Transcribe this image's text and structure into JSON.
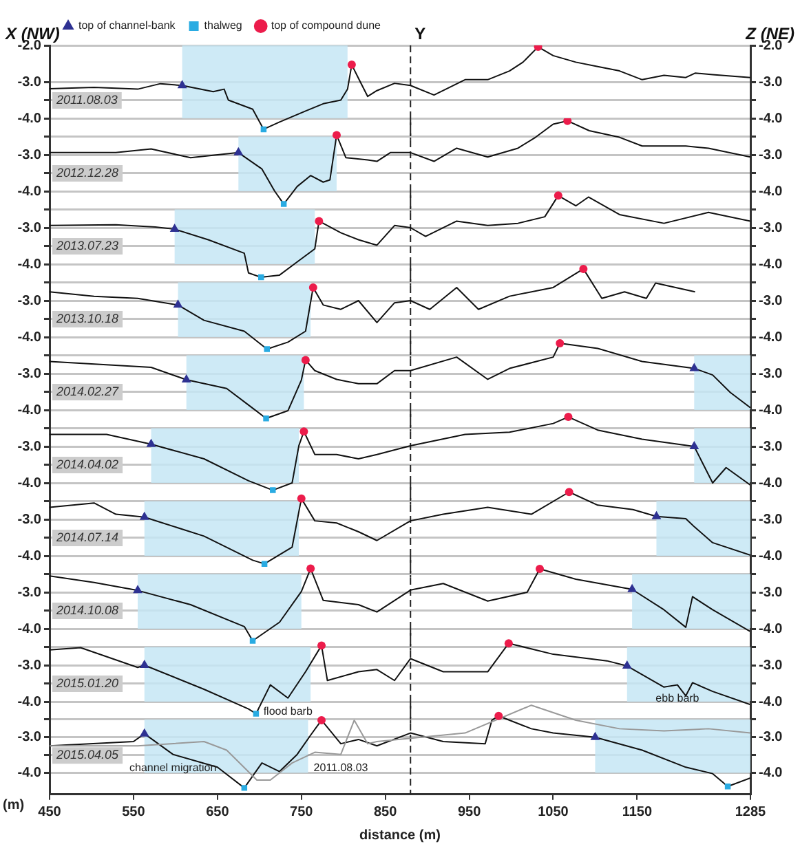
{
  "chart_data": [
    {
      "type": "line",
      "title": "2011.08.03",
      "annotations": [
        "X (NW)",
        "Z (NE)"
      ],
      "legend": "top",
      "tick_labels": "y",
      "grid": "y",
      "xlim": [
        450,
        1285
      ],
      "ylim": [
        -4.6,
        -2.0
      ],
      "yticks": [
        {
          "value": -2,
          "label": "-2.0"
        },
        {
          "value": -3,
          "label": "-3.0"
        },
        {
          "value": -3.5,
          "label": null
        },
        {
          "value": -4,
          "label": "-4.0"
        }
      ],
      "y2lim": [
        -4.6,
        -2.0
      ],
      "y2ticks": [
        {
          "value": -2,
          "label": "-2.0"
        },
        {
          "value": -3,
          "label": "-3.0"
        },
        {
          "value": -3.5,
          "label": null
        },
        {
          "value": -4,
          "label": "-4.0"
        }
      ],
      "ref_lines": [
        {
          "axis": "x",
          "value": 880,
          "label": "Y",
          "line_style": "dashed",
          "color": "#222222"
        }
      ],
      "bands": [
        {
          "axis": "x",
          "from": 608,
          "to": 805,
          "color": "#c6e6f4"
        }
      ],
      "series": [
        {
          "color": "#111111",
          "x": [
            450,
            503,
            555,
            582,
            608,
            645,
            658,
            663,
            692,
            705,
            724,
            755,
            776,
            797,
            805,
            810,
            818,
            829,
            840,
            861,
            880,
            908,
            945,
            972,
            998,
            1014,
            1032,
            1050,
            1077,
            1103,
            1129,
            1156,
            1182,
            1208,
            1219,
            1240,
            1285
          ],
          "values": [
            -3.19,
            -3.15,
            -3.2,
            -3.05,
            -3.1,
            -3.27,
            -3.2,
            -3.5,
            -3.75,
            -4.3,
            -4.1,
            -3.8,
            -3.6,
            -3.5,
            -3.2,
            -2.53,
            -2.9,
            -3.4,
            -3.24,
            -3.04,
            -3.1,
            -3.36,
            -2.94,
            -2.94,
            -2.7,
            -2.46,
            -2.04,
            -2.28,
            -2.46,
            -2.58,
            -2.7,
            -2.94,
            -2.82,
            -2.88,
            -2.76,
            -2.8,
            -2.88
          ]
        },
        {
          "type": "scatter",
          "name": "top of channel-bank",
          "marker": "triangle",
          "color": "#2e3192",
          "x": [
            608
          ],
          "values": [
            -3.1
          ]
        },
        {
          "type": "scatter",
          "name": "thalweg",
          "marker": "square",
          "color": "#29abe2",
          "x": [
            705
          ],
          "values": [
            -4.3
          ]
        },
        {
          "type": "scatter",
          "name": "top of compound dune",
          "marker": "circle",
          "color": "#ec1c4b",
          "x": [
            810,
            1032
          ],
          "values": [
            -2.53,
            -2.04
          ]
        }
      ]
    },
    {
      "type": "line",
      "title": "2012.12.28",
      "tick_labels": "y",
      "grid": "y",
      "xlim": [
        450,
        1285
      ],
      "ylim": [
        -4.6,
        -2.0
      ],
      "yticks": [
        {
          "value": -2.5,
          "label": null
        },
        {
          "value": -3,
          "label": "-3.0"
        },
        {
          "value": -3.5,
          "label": null
        },
        {
          "value": -4,
          "label": "-4.0"
        }
      ],
      "y2lim": [
        -4.6,
        -2.0
      ],
      "y2ticks": [
        {
          "value": -2.5,
          "label": null
        },
        {
          "value": -3,
          "label": "-3.0"
        },
        {
          "value": -3.5,
          "label": null
        },
        {
          "value": -4,
          "label": "-4.0"
        }
      ],
      "ref_lines": [
        {
          "axis": "x",
          "value": 880,
          "line_style": "dashed",
          "color": "#222222"
        }
      ],
      "bands": [
        {
          "axis": "x",
          "from": 675,
          "to": 792,
          "color": "#c6e6f4"
        }
      ],
      "series": [
        {
          "color": "#111111",
          "x": [
            450,
            529,
            571,
            618,
            675,
            703,
            718,
            729,
            745,
            761,
            776,
            784,
            792,
            803,
            829,
            840,
            856,
            880,
            908,
            935,
            972,
            1008,
            1029,
            1050,
            1067,
            1093,
            1129,
            1156,
            1208,
            1235,
            1285
          ],
          "values": [
            -2.94,
            -2.94,
            -2.84,
            -3.08,
            -2.94,
            -3.39,
            -3.99,
            -4.35,
            -3.87,
            -3.57,
            -3.75,
            -3.69,
            -2.46,
            -3.08,
            -3.14,
            -3.18,
            -2.94,
            -2.94,
            -3.18,
            -2.82,
            -3.06,
            -2.82,
            -2.52,
            -2.16,
            -2.07,
            -2.34,
            -2.52,
            -2.76,
            -2.76,
            -2.82,
            -3.06
          ]
        },
        {
          "type": "scatter",
          "marker": "triangle",
          "color": "#2e3192",
          "x": [
            675
          ],
          "values": [
            -2.94
          ]
        },
        {
          "type": "scatter",
          "marker": "square",
          "color": "#29abe2",
          "x": [
            729
          ],
          "values": [
            -4.35
          ]
        },
        {
          "type": "scatter",
          "marker": "circle",
          "color": "#ec1c4b",
          "x": [
            792,
            1067
          ],
          "values": [
            -2.46,
            -2.07
          ]
        }
      ]
    },
    {
      "type": "line",
      "title": "2013.07.23",
      "tick_labels": "y",
      "grid": "y",
      "xlim": [
        450,
        1285
      ],
      "ylim": [
        -4.6,
        -2.0
      ],
      "yticks": [
        {
          "value": -2.5,
          "label": null
        },
        {
          "value": -3,
          "label": "-3.0"
        },
        {
          "value": -3.5,
          "label": null
        },
        {
          "value": -4,
          "label": "-4.0"
        }
      ],
      "y2lim": [
        -4.6,
        -2.0
      ],
      "y2ticks": [
        {
          "value": -2.5,
          "label": null
        },
        {
          "value": -3,
          "label": "-3.0"
        },
        {
          "value": -3.5,
          "label": null
        },
        {
          "value": -4,
          "label": "-4.0"
        }
      ],
      "ref_lines": [
        {
          "axis": "x",
          "value": 880,
          "line_style": "dashed",
          "color": "#222222"
        }
      ],
      "bands": [
        {
          "axis": "x",
          "from": 599,
          "to": 766,
          "color": "#c6e6f4"
        }
      ],
      "series": [
        {
          "color": "#111111",
          "x": [
            450,
            529,
            576,
            599,
            639,
            682,
            687,
            702,
            724,
            745,
            766,
            771,
            797,
            818,
            840,
            861,
            880,
            898,
            935,
            972,
            1008,
            1040,
            1056,
            1077,
            1092,
            1129,
            1182,
            1235,
            1285
          ],
          "values": [
            -2.94,
            -2.92,
            -2.98,
            -3.04,
            -3.33,
            -3.7,
            -4.24,
            -4.36,
            -4.3,
            -3.94,
            -3.58,
            -2.82,
            -3.14,
            -3.33,
            -3.48,
            -2.94,
            -3.0,
            -3.24,
            -2.82,
            -2.94,
            -2.88,
            -2.7,
            -2.12,
            -2.4,
            -2.16,
            -2.64,
            -2.88,
            -2.58,
            -2.82
          ]
        },
        {
          "type": "scatter",
          "marker": "triangle",
          "color": "#2e3192",
          "x": [
            599
          ],
          "values": [
            -3.04
          ]
        },
        {
          "type": "scatter",
          "marker": "square",
          "color": "#29abe2",
          "x": [
            702
          ],
          "values": [
            -4.36
          ]
        },
        {
          "type": "scatter",
          "marker": "circle",
          "color": "#ec1c4b",
          "x": [
            771,
            1056
          ],
          "values": [
            -2.82,
            -2.12
          ]
        }
      ]
    },
    {
      "type": "line",
      "title": "2013.10.18",
      "tick_labels": "y",
      "grid": "y",
      "xlim": [
        450,
        1285
      ],
      "ylim": [
        -4.6,
        -2.0
      ],
      "yticks": [
        {
          "value": -2.5,
          "label": null
        },
        {
          "value": -3,
          "label": "-3.0"
        },
        {
          "value": -3.5,
          "label": null
        },
        {
          "value": -4,
          "label": "-4.0"
        }
      ],
      "y2lim": [
        -4.6,
        -2.0
      ],
      "y2ticks": [
        {
          "value": -2.5,
          "label": null
        },
        {
          "value": -3,
          "label": "-3.0"
        },
        {
          "value": -3.5,
          "label": null
        },
        {
          "value": -4,
          "label": "-4.0"
        }
      ],
      "ref_lines": [
        {
          "axis": "x",
          "value": 880,
          "line_style": "dashed",
          "color": "#222222"
        }
      ],
      "bands": [
        {
          "axis": "x",
          "from": 603,
          "to": 761,
          "color": "#c6e6f4"
        }
      ],
      "series": [
        {
          "color": "#111111",
          "x": [
            450,
            503,
            555,
            603,
            634,
            682,
            709,
            734,
            755,
            764,
            776,
            797,
            818,
            840,
            861,
            880,
            903,
            935,
            961,
            998,
            1050,
            1086,
            1108,
            1135,
            1161,
            1172,
            1219
          ],
          "values": [
            -2.76,
            -2.88,
            -2.94,
            -3.12,
            -3.54,
            -3.84,
            -4.33,
            -4.14,
            -3.84,
            -2.64,
            -3.12,
            -3.24,
            -3.0,
            -3.6,
            -3.06,
            -3.0,
            -3.24,
            -2.64,
            -3.24,
            -2.88,
            -2.64,
            -2.13,
            -2.94,
            -2.76,
            -2.94,
            -2.52,
            -2.76
          ]
        },
        {
          "type": "scatter",
          "marker": "triangle",
          "color": "#2e3192",
          "x": [
            603
          ],
          "values": [
            -3.12
          ]
        },
        {
          "type": "scatter",
          "marker": "square",
          "color": "#29abe2",
          "x": [
            709
          ],
          "values": [
            -4.33
          ]
        },
        {
          "type": "scatter",
          "marker": "circle",
          "color": "#ec1c4b",
          "x": [
            764,
            1086
          ],
          "values": [
            -2.64,
            -2.13
          ]
        }
      ]
    },
    {
      "type": "line",
      "title": "2014.02.27",
      "tick_labels": "y",
      "grid": "y",
      "xlim": [
        450,
        1285
      ],
      "ylim": [
        -4.6,
        -2.0
      ],
      "yticks": [
        {
          "value": -2.5,
          "label": null
        },
        {
          "value": -3,
          "label": "-3.0"
        },
        {
          "value": -3.5,
          "label": null
        },
        {
          "value": -4,
          "label": "-4.0"
        }
      ],
      "y2lim": [
        -4.6,
        -2.0
      ],
      "y2ticks": [
        {
          "value": -2.5,
          "label": null
        },
        {
          "value": -3,
          "label": "-3.0"
        },
        {
          "value": -3.5,
          "label": null
        },
        {
          "value": -4,
          "label": "-4.0"
        }
      ],
      "ref_lines": [
        {
          "axis": "x",
          "value": 880,
          "line_style": "dashed",
          "color": "#222222"
        }
      ],
      "bands": [
        {
          "axis": "x",
          "from": 613,
          "to": 753,
          "color": "#c6e6f4"
        },
        {
          "axis": "x",
          "from": 1218,
          "to": 1285,
          "color": "#c6e6f4"
        }
      ],
      "series": [
        {
          "color": "#111111",
          "x": [
            450,
            571,
            613,
            661,
            692,
            708,
            734,
            750,
            755,
            766,
            792,
            818,
            840,
            861,
            880,
            935,
            972,
            998,
            1050,
            1058,
            1103,
            1156,
            1218,
            1240,
            1261,
            1285
          ],
          "values": [
            -2.67,
            -2.83,
            -3.17,
            -3.41,
            -3.95,
            -4.23,
            -4.02,
            -3.18,
            -2.63,
            -2.92,
            -3.16,
            -3.28,
            -3.28,
            -2.92,
            -2.92,
            -2.55,
            -3.16,
            -2.86,
            -2.55,
            -2.17,
            -2.31,
            -2.67,
            -2.86,
            -3.04,
            -3.52,
            -3.94
          ]
        },
        {
          "type": "scatter",
          "marker": "triangle",
          "color": "#2e3192",
          "x": [
            613,
            1218
          ],
          "values": [
            -3.17,
            -2.86
          ]
        },
        {
          "type": "scatter",
          "marker": "square",
          "color": "#29abe2",
          "x": [
            708
          ],
          "values": [
            -4.23
          ]
        },
        {
          "type": "scatter",
          "marker": "circle",
          "color": "#ec1c4b",
          "x": [
            755,
            1058
          ],
          "values": [
            -2.63,
            -2.17
          ]
        }
      ]
    },
    {
      "type": "line",
      "title": "2014.04.02",
      "tick_labels": "y",
      "grid": "y",
      "xlim": [
        450,
        1285
      ],
      "ylim": [
        -4.6,
        -2.0
      ],
      "yticks": [
        {
          "value": -2.5,
          "label": null
        },
        {
          "value": -3,
          "label": "-3.0"
        },
        {
          "value": -3.5,
          "label": null
        },
        {
          "value": -4,
          "label": "-4.0"
        }
      ],
      "y2lim": [
        -4.6,
        -2.0
      ],
      "y2ticks": [
        {
          "value": -2.5,
          "label": null
        },
        {
          "value": -3,
          "label": "-3.0"
        },
        {
          "value": -3.5,
          "label": null
        },
        {
          "value": -4,
          "label": "-4.0"
        }
      ],
      "ref_lines": [
        {
          "axis": "x",
          "value": 880,
          "line_style": "dashed",
          "color": "#222222"
        }
      ],
      "bands": [
        {
          "axis": "x",
          "from": 571,
          "to": 747,
          "color": "#c6e6f4"
        },
        {
          "axis": "x",
          "from": 1218,
          "to": 1285,
          "color": "#c6e6f4"
        }
      ],
      "series": [
        {
          "color": "#111111",
          "x": [
            450,
            518,
            571,
            634,
            687,
            716,
            739,
            747,
            753,
            766,
            792,
            818,
            840,
            880,
            945,
            998,
            1050,
            1068,
            1103,
            1156,
            1218,
            1240,
            1256,
            1285
          ],
          "values": [
            -2.67,
            -2.67,
            -2.94,
            -3.34,
            -3.94,
            -4.2,
            -4.0,
            -2.98,
            -2.59,
            -3.22,
            -3.22,
            -3.34,
            -3.22,
            -2.98,
            -2.67,
            -2.61,
            -2.37,
            -2.19,
            -2.55,
            -2.8,
            -3.0,
            -4.0,
            -3.58,
            -4.06
          ]
        },
        {
          "type": "scatter",
          "marker": "triangle",
          "color": "#2e3192",
          "x": [
            571,
            1218
          ],
          "values": [
            -2.94,
            -3.0
          ]
        },
        {
          "type": "scatter",
          "marker": "square",
          "color": "#29abe2",
          "x": [
            716
          ],
          "values": [
            -4.2
          ]
        },
        {
          "type": "scatter",
          "marker": "circle",
          "color": "#ec1c4b",
          "x": [
            753,
            1068
          ],
          "values": [
            -2.59,
            -2.19
          ]
        }
      ]
    },
    {
      "type": "line",
      "title": "2014.07.14",
      "tick_labels": "y",
      "grid": "y",
      "xlim": [
        450,
        1285
      ],
      "ylim": [
        -4.6,
        -2.0
      ],
      "yticks": [
        {
          "value": -2.5,
          "label": null
        },
        {
          "value": -3,
          "label": "-3.0"
        },
        {
          "value": -3.5,
          "label": null
        },
        {
          "value": -4,
          "label": "-4.0"
        }
      ],
      "y2lim": [
        -4.6,
        -2.0
      ],
      "y2ticks": [
        {
          "value": -2.5,
          "label": null
        },
        {
          "value": -3,
          "label": "-3.0"
        },
        {
          "value": -3.5,
          "label": null
        },
        {
          "value": -4,
          "label": "-4.0"
        }
      ],
      "ref_lines": [
        {
          "axis": "x",
          "value": 880,
          "line_style": "dashed",
          "color": "#222222"
        }
      ],
      "bands": [
        {
          "axis": "x",
          "from": 563,
          "to": 747,
          "color": "#c6e6f4"
        },
        {
          "axis": "x",
          "from": 1173,
          "to": 1285,
          "color": "#c6e6f4"
        }
      ],
      "series": [
        {
          "color": "#111111",
          "x": [
            450,
            503,
            529,
            563,
            634,
            692,
            706,
            739,
            750,
            766,
            792,
            818,
            840,
            880,
            919,
            972,
            1024,
            1069,
            1103,
            1145,
            1173,
            1208,
            1218,
            1240,
            1285
          ],
          "values": [
            -2.67,
            -2.55,
            -2.86,
            -2.94,
            -3.46,
            -4.12,
            -4.22,
            -3.76,
            -2.43,
            -3.04,
            -3.1,
            -3.34,
            -3.58,
            -3.04,
            -2.86,
            -2.67,
            -2.86,
            -2.25,
            -2.61,
            -2.73,
            -2.92,
            -2.98,
            -3.2,
            -3.64,
            -3.98
          ]
        },
        {
          "type": "scatter",
          "marker": "triangle",
          "color": "#2e3192",
          "x": [
            563,
            1173
          ],
          "values": [
            -2.94,
            -2.92
          ]
        },
        {
          "type": "scatter",
          "marker": "square",
          "color": "#29abe2",
          "x": [
            706
          ],
          "values": [
            -4.22
          ]
        },
        {
          "type": "scatter",
          "marker": "circle",
          "color": "#ec1c4b",
          "x": [
            750,
            1069
          ],
          "values": [
            -2.43,
            -2.25
          ]
        }
      ]
    },
    {
      "type": "line",
      "title": "2014.10.08",
      "tick_labels": "y",
      "grid": "y",
      "xlim": [
        450,
        1285
      ],
      "ylim": [
        -4.6,
        -2.0
      ],
      "yticks": [
        {
          "value": -2.5,
          "label": null
        },
        {
          "value": -3,
          "label": "-3.0"
        },
        {
          "value": -3.5,
          "label": null
        },
        {
          "value": -4,
          "label": "-4.0"
        }
      ],
      "y2lim": [
        -4.6,
        -2.0
      ],
      "y2ticks": [
        {
          "value": -2.5,
          "label": null
        },
        {
          "value": -3,
          "label": "-3.0"
        },
        {
          "value": -3.5,
          "label": null
        },
        {
          "value": -4,
          "label": "-4.0"
        }
      ],
      "ref_lines": [
        {
          "axis": "x",
          "value": 880,
          "line_style": "dashed",
          "color": "#222222"
        }
      ],
      "bands": [
        {
          "axis": "x",
          "from": 555,
          "to": 750,
          "color": "#c6e6f4"
        },
        {
          "axis": "x",
          "from": 1144,
          "to": 1285,
          "color": "#c6e6f4"
        }
      ],
      "series": [
        {
          "color": "#111111",
          "x": [
            450,
            503,
            555,
            618,
            682,
            692,
            724,
            750,
            761,
            776,
            818,
            840,
            880,
            919,
            972,
            1019,
            1034,
            1077,
            1144,
            1182,
            1208,
            1216,
            1240,
            1285
          ],
          "values": [
            -2.55,
            -2.73,
            -2.95,
            -3.34,
            -3.94,
            -4.33,
            -3.82,
            -2.98,
            -2.35,
            -3.22,
            -3.34,
            -3.54,
            -2.94,
            -2.76,
            -3.24,
            -3.0,
            -2.36,
            -2.64,
            -2.92,
            -3.48,
            -3.96,
            -3.12,
            -3.48,
            -4.08
          ]
        },
        {
          "type": "scatter",
          "marker": "triangle",
          "color": "#2e3192",
          "x": [
            555,
            1144
          ],
          "values": [
            -2.95,
            -2.92
          ]
        },
        {
          "type": "scatter",
          "marker": "square",
          "color": "#29abe2",
          "x": [
            692
          ],
          "values": [
            -4.33
          ]
        },
        {
          "type": "scatter",
          "marker": "circle",
          "color": "#ec1c4b",
          "x": [
            761,
            1034
          ],
          "values": [
            -2.35,
            -2.36
          ]
        }
      ]
    },
    {
      "type": "line",
      "title": "2015.01.20",
      "annotations": [
        {
          "text": "flood barb",
          "x": 734,
          "y": -3.9
        },
        {
          "text": "ebb barb",
          "x": 1198,
          "y": -3.54
        }
      ],
      "tick_labels": "y",
      "grid": "y",
      "xlim": [
        450,
        1285
      ],
      "ylim": [
        -4.6,
        -2.0
      ],
      "yticks": [
        {
          "value": -2.5,
          "label": null
        },
        {
          "value": -3,
          "label": "-3.0"
        },
        {
          "value": -3.5,
          "label": null
        },
        {
          "value": -4,
          "label": "-4.0"
        }
      ],
      "y2lim": [
        -4.6,
        -2.0
      ],
      "y2ticks": [
        {
          "value": -2.5,
          "label": null
        },
        {
          "value": -3,
          "label": "-3.0"
        },
        {
          "value": -3.5,
          "label": null
        },
        {
          "value": -4,
          "label": "-4.0"
        }
      ],
      "ref_lines": [
        {
          "axis": "x",
          "value": 880,
          "line_style": "dashed",
          "color": "#222222"
        }
      ],
      "bands": [
        {
          "axis": "x",
          "from": 563,
          "to": 761,
          "color": "#c6e6f4"
        },
        {
          "axis": "x",
          "from": 1138,
          "to": 1285,
          "color": "#c6e6f4"
        }
      ],
      "series": [
        {
          "color": "#111111",
          "x": [
            450,
            487,
            555,
            563,
            634,
            687,
            696,
            713,
            734,
            755,
            774,
            781,
            818,
            840,
            861,
            880,
            919,
            972,
            997,
            1050,
            1114,
            1138,
            1182,
            1198,
            1208,
            1216,
            1240,
            1285
          ],
          "values": [
            -2.58,
            -2.52,
            -3.06,
            -3.0,
            -3.66,
            -4.2,
            -4.33,
            -3.54,
            -3.9,
            -3.18,
            -2.46,
            -3.42,
            -3.18,
            -3.12,
            -3.42,
            -2.82,
            -3.18,
            -3.18,
            -2.4,
            -2.7,
            -2.88,
            -3.02,
            -3.6,
            -3.54,
            -3.84,
            -3.48,
            -3.72,
            -4.08
          ]
        },
        {
          "type": "scatter",
          "marker": "triangle",
          "color": "#2e3192",
          "x": [
            563,
            1138
          ],
          "values": [
            -3.0,
            -3.02
          ]
        },
        {
          "type": "scatter",
          "marker": "square",
          "color": "#29abe2",
          "x": [
            696
          ],
          "values": [
            -4.33
          ]
        },
        {
          "type": "scatter",
          "marker": "circle",
          "color": "#ec1c4b",
          "x": [
            774,
            997
          ],
          "values": [
            -2.46,
            -2.4
          ]
        }
      ]
    },
    {
      "type": "line",
      "title": "2015.04.05",
      "xlabel": "distance (m)",
      "ylabel": "(m)",
      "annotations": [
        {
          "text": "channel migration",
          "x": 597,
          "y": -3.48
        },
        {
          "text": "2011.08.03",
          "x": 797,
          "y": -3.48
        }
      ],
      "grid": "y",
      "xlim": [
        450,
        1285
      ],
      "xticks": [
        450,
        550,
        650,
        750,
        850,
        950,
        1050,
        1150,
        1285
      ],
      "ylim": [
        -4.6,
        -2.0
      ],
      "yticks": [
        {
          "value": -2.5,
          "label": null
        },
        {
          "value": -3,
          "label": "-3.0"
        },
        {
          "value": -3.5,
          "label": null
        },
        {
          "value": -4,
          "label": "-4.0"
        }
      ],
      "y2lim": [
        -4.6,
        -2.0
      ],
      "y2ticks": [
        {
          "value": -2.5,
          "label": null
        },
        {
          "value": -3,
          "label": "-3.0"
        },
        {
          "value": -3.5,
          "label": null
        },
        {
          "value": -4,
          "label": "-4.0"
        }
      ],
      "ref_lines": [
        {
          "axis": "x",
          "value": 880,
          "line_style": "dashed",
          "color": "#222222"
        }
      ],
      "bands": [
        {
          "axis": "x",
          "from": 563,
          "to": 758,
          "color": "#c6e6f4"
        },
        {
          "axis": "x",
          "from": 1100,
          "to": 1285,
          "color": "#c6e6f4"
        }
      ],
      "series": [
        {
          "color": "#999999",
          "x": [
            450,
            555,
            634,
            661,
            697,
            713,
            739,
            766,
            797,
            813,
            829,
            840,
            945,
            1024,
            1077,
            1129,
            1182,
            1235,
            1285
          ],
          "values": [
            -3.24,
            -3.24,
            -3.12,
            -3.36,
            -4.2,
            -4.2,
            -3.72,
            -3.42,
            -3.48,
            -2.52,
            -3.18,
            -3.12,
            -2.88,
            -2.1,
            -2.52,
            -2.76,
            -2.82,
            -2.76,
            -2.88
          ]
        },
        {
          "color": "#111111",
          "x": [
            450,
            550,
            563,
            597,
            650,
            682,
            703,
            724,
            745,
            761,
            774,
            797,
            818,
            840,
            880,
            919,
            969,
            977,
            985,
            1024,
            1050,
            1100,
            1156,
            1208,
            1240,
            1258,
            1285
          ],
          "values": [
            -3.24,
            -3.12,
            -2.9,
            -3.48,
            -3.84,
            -4.42,
            -3.72,
            -3.96,
            -3.48,
            -2.94,
            -2.52,
            -3.18,
            -3.06,
            -3.24,
            -2.88,
            -3.12,
            -3.18,
            -2.52,
            -2.4,
            -2.76,
            -2.88,
            -3.0,
            -3.36,
            -3.84,
            -4.02,
            -4.38,
            -4.14
          ]
        },
        {
          "type": "scatter",
          "marker": "triangle",
          "color": "#2e3192",
          "x": [
            563,
            1100
          ],
          "values": [
            -2.9,
            -3.0
          ]
        },
        {
          "type": "scatter",
          "marker": "square",
          "color": "#29abe2",
          "x": [
            682,
            1258
          ],
          "values": [
            -4.42,
            -4.38
          ]
        },
        {
          "type": "scatter",
          "marker": "circle",
          "color": "#ec1c4b",
          "x": [
            774,
            985
          ],
          "values": [
            -2.52,
            -2.4
          ]
        }
      ]
    }
  ]
}
